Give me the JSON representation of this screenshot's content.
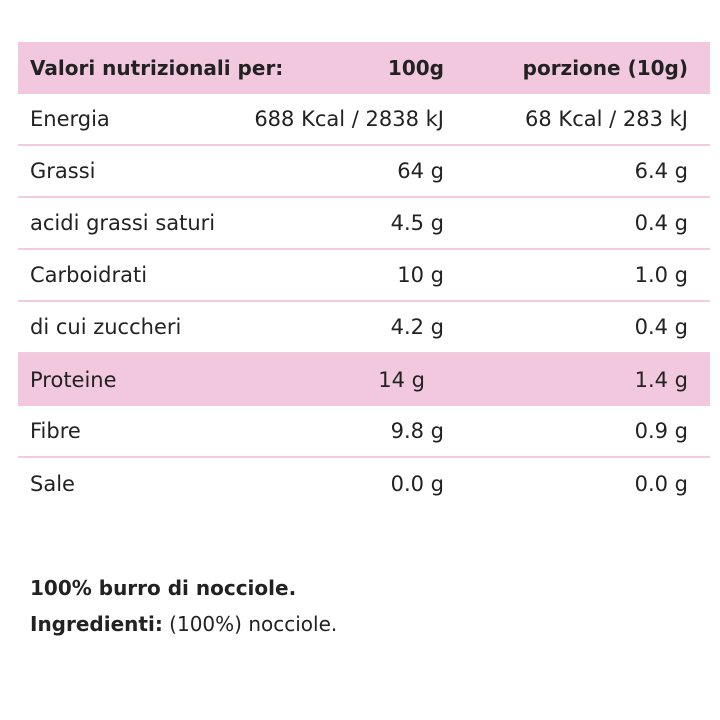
{
  "table": {
    "header": [
      "Valori nutrizionali per:",
      "100g",
      "porzione (10g)"
    ],
    "rows": [
      [
        "Energia",
        "688 Kcal / 2838 kJ",
        "68 Kcal / 283 kJ"
      ],
      [
        "Grassi",
        "64 g",
        "6.4 g"
      ],
      [
        "acidi grassi saturi",
        "4.5 g",
        "0.4 g"
      ],
      [
        "Carboidrati",
        "10 g",
        "1.0 g"
      ],
      [
        "di cui zuccheri",
        "4.2 g",
        "0.4 g"
      ],
      [
        "Proteine",
        "14 g",
        "1.4 g"
      ],
      [
        "Fibre",
        "9.8 g",
        "0.9 g"
      ],
      [
        "Sale",
        "0.0 g",
        "0.0 g"
      ]
    ]
  },
  "footer": {
    "line1": "100% burro di nocciole.",
    "ingredients_label": "Ingredienti:",
    "ingredients_text": "(100%) nocciole."
  }
}
